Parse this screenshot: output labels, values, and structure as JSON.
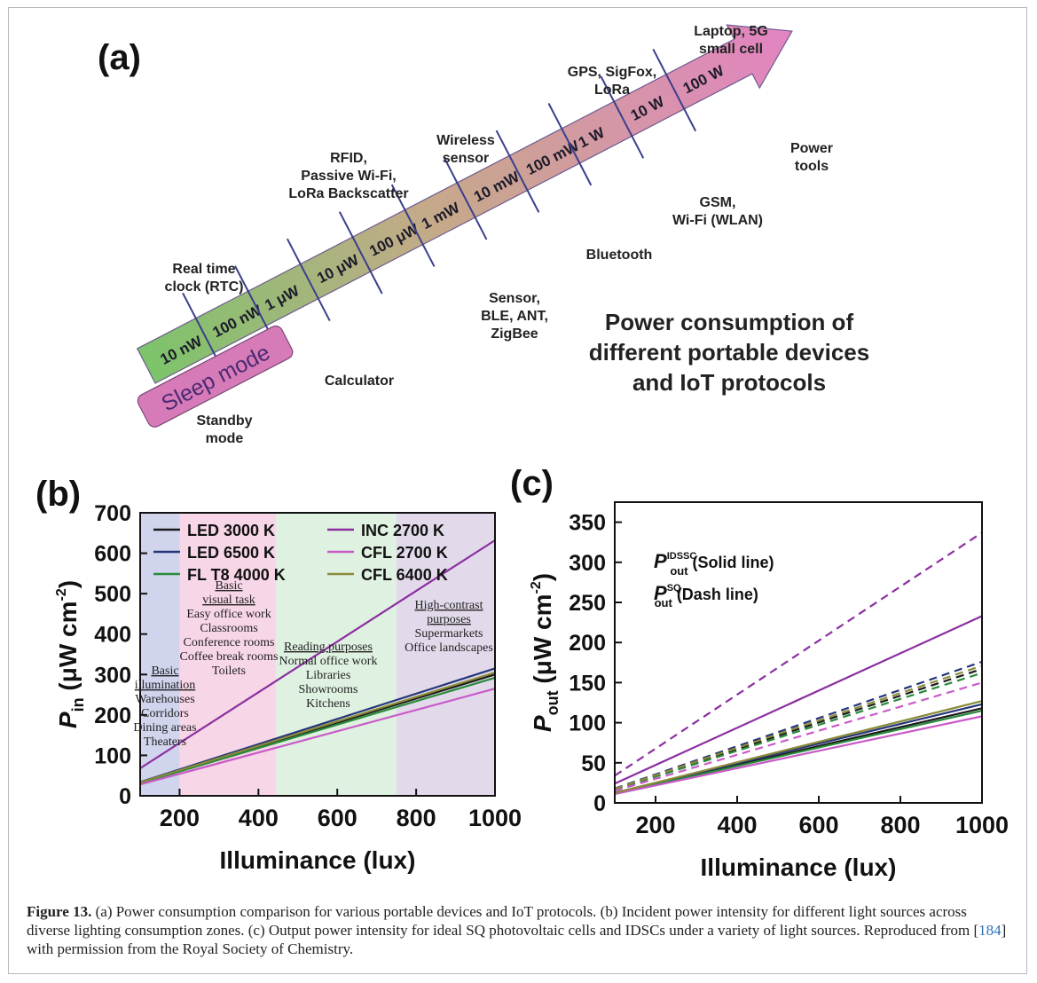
{
  "panel_a": {
    "label": "(a)",
    "power_ticks": [
      "10 nW",
      "100 nW",
      "1 μW",
      "10 μW",
      "100 μW",
      "1 mW",
      "10 mW",
      "100 mW",
      "1 W",
      "10 W",
      "100 W"
    ],
    "sleep_mode": "Sleep mode",
    "devices_above": [
      [
        "Real time",
        "clock (RTC)"
      ],
      [
        "RFID,",
        "Passive Wi-Fi,",
        "LoRa Backscatter"
      ],
      [
        "Wireless",
        "sensor"
      ],
      [
        "GPS, SigFox,",
        "LoRa"
      ],
      [
        "Laptop, 5G",
        "small cell"
      ]
    ],
    "devices_below": [
      [
        "Standby",
        "mode"
      ],
      [
        "Calculator"
      ],
      [
        "Sensor,",
        "BLE, ANT,",
        "ZigBee"
      ],
      [
        "Bluetooth"
      ],
      [
        "GSM,",
        "Wi-Fi (WLAN)"
      ],
      [
        "Power",
        "tools"
      ]
    ],
    "title_lines": [
      "Power consumption of",
      "different portable devices",
      "and IoT protocols"
    ],
    "colors": {
      "arrow_start": "#7cc46a",
      "arrow_mid": "#c6a98a",
      "arrow_end": "#e384c2",
      "sleep_fill": "#d77bb8",
      "tick": "#3a3f8c"
    }
  },
  "chart_data": [
    {
      "panel": "(b)",
      "type": "line",
      "xlabel": "Illuminance (lux)",
      "ylabel_main": "P",
      "ylabel_sub": "in",
      "ylabel_unit": " (μW cm",
      "ylabel_sup": "-2",
      "ylabel_close": ")",
      "xlim": [
        100,
        1000
      ],
      "ylim": [
        0,
        700
      ],
      "xticks": [
        200,
        400,
        600,
        800,
        1000
      ],
      "yticks": [
        0,
        100,
        200,
        300,
        400,
        500,
        600,
        700
      ],
      "grid": false,
      "legend_position": "top",
      "series": [
        {
          "name": "LED 3000 K",
          "color": "#1a1a1a",
          "x": [
            100,
            1000
          ],
          "y": [
            32,
            300
          ]
        },
        {
          "name": "LED 6500 K",
          "color": "#24357a",
          "x": [
            100,
            1000
          ],
          "y": [
            34,
            315
          ]
        },
        {
          "name": "FL T8 4000 K",
          "color": "#2a8a3c",
          "x": [
            100,
            1000
          ],
          "y": [
            31,
            292
          ]
        },
        {
          "name": "INC 2700 K",
          "color": "#8b2fa0",
          "x": [
            100,
            1000
          ],
          "y": [
            68,
            632
          ]
        },
        {
          "name": "CFL 2700 K",
          "color": "#c95bc8",
          "x": [
            100,
            1000
          ],
          "y": [
            28,
            265
          ]
        },
        {
          "name": "CFL 6400 K",
          "color": "#8a8a3a",
          "x": [
            100,
            1000
          ],
          "y": [
            33,
            305
          ]
        }
      ],
      "zones": [
        {
          "x": [
            100,
            200
          ],
          "color": "#c8cdea",
          "lines": [
            "Basic",
            "illumination",
            "Warehouses",
            "Corridors",
            "Dining areas",
            "Theaters"
          ],
          "underlined": 2
        },
        {
          "x": [
            200,
            445
          ],
          "color": "#f6cfe3",
          "lines": [
            "Basic",
            "visual task",
            "Easy office work",
            "Classrooms",
            "Conference rooms",
            "Coffee break rooms",
            "Toilets"
          ],
          "underlined": 2
        },
        {
          "x": [
            445,
            750
          ],
          "color": "#d9efdc",
          "lines": [
            "Reading purposes",
            "Normal office work",
            "Libraries",
            "Showrooms",
            "Kitchens"
          ],
          "underlined": 1
        },
        {
          "x": [
            750,
            1000
          ],
          "color": "#ddd3e8",
          "lines": [
            "High-contrast",
            "purposes",
            "Supermarkets",
            "Office landscapes"
          ],
          "underlined": 2
        }
      ]
    },
    {
      "panel": "(c)",
      "type": "line",
      "xlabel": "Illuminance (lux)",
      "ylabel_main": "P",
      "ylabel_sub": "out",
      "ylabel_unit": " (μW cm",
      "ylabel_sup": "-2",
      "ylabel_close": ")",
      "xlim": [
        100,
        1000
      ],
      "ylim": [
        0,
        375
      ],
      "xticks": [
        200,
        400,
        600,
        800,
        1000
      ],
      "yticks": [
        0,
        50,
        100,
        150,
        200,
        250,
        300,
        350
      ],
      "grid": false,
      "annotations": [
        {
          "main": "P",
          "sup": "IDSSC",
          "sub": "out",
          "text": " (Solid line)"
        },
        {
          "main": "P",
          "sup": "SQ",
          "sub": "out",
          "text": " (Dash line)"
        }
      ],
      "series": [
        {
          "color": "#1a1a1a",
          "dash": false,
          "x": [
            100,
            1000
          ],
          "y": [
            12,
            118
          ]
        },
        {
          "color": "#24357a",
          "dash": false,
          "x": [
            100,
            1000
          ],
          "y": [
            12.5,
            123
          ]
        },
        {
          "color": "#2a8a3c",
          "dash": false,
          "x": [
            100,
            1000
          ],
          "y": [
            11.5,
            115
          ]
        },
        {
          "color": "#8b2fa0",
          "dash": false,
          "x": [
            100,
            1000
          ],
          "y": [
            24,
            233
          ]
        },
        {
          "color": "#c95bc8",
          "dash": false,
          "x": [
            100,
            1000
          ],
          "y": [
            11,
            108
          ]
        },
        {
          "color": "#8a8a3a",
          "dash": false,
          "x": [
            100,
            1000
          ],
          "y": [
            12.5,
            127
          ]
        },
        {
          "color": "#1a1a1a",
          "dash": true,
          "x": [
            100,
            1000
          ],
          "y": [
            17,
            167
          ]
        },
        {
          "color": "#24357a",
          "dash": true,
          "x": [
            100,
            1000
          ],
          "y": [
            18,
            176
          ]
        },
        {
          "color": "#2a8a3c",
          "dash": true,
          "x": [
            100,
            1000
          ],
          "y": [
            16.5,
            162
          ]
        },
        {
          "color": "#8b2fa0",
          "dash": true,
          "x": [
            100,
            1000
          ],
          "y": [
            34,
            337
          ]
        },
        {
          "color": "#c95bc8",
          "dash": true,
          "x": [
            100,
            1000
          ],
          "y": [
            15,
            150
          ]
        },
        {
          "color": "#8a8a3a",
          "dash": true,
          "x": [
            100,
            1000
          ],
          "y": [
            17.5,
            171
          ]
        }
      ]
    }
  ],
  "caption": {
    "label": "Figure 13.",
    "text_before_ref": " (a) Power consumption comparison for various portable devices and IoT protocols. (b) Incident power intensity for different light sources across diverse lighting consumption zones. (c) Output power intensity for ideal SQ photovoltaic cells and IDSCs under a variety of light sources. Reproduced from [",
    "ref": "184",
    "text_after_ref": "] with permission from the Royal Society of Chemistry."
  }
}
